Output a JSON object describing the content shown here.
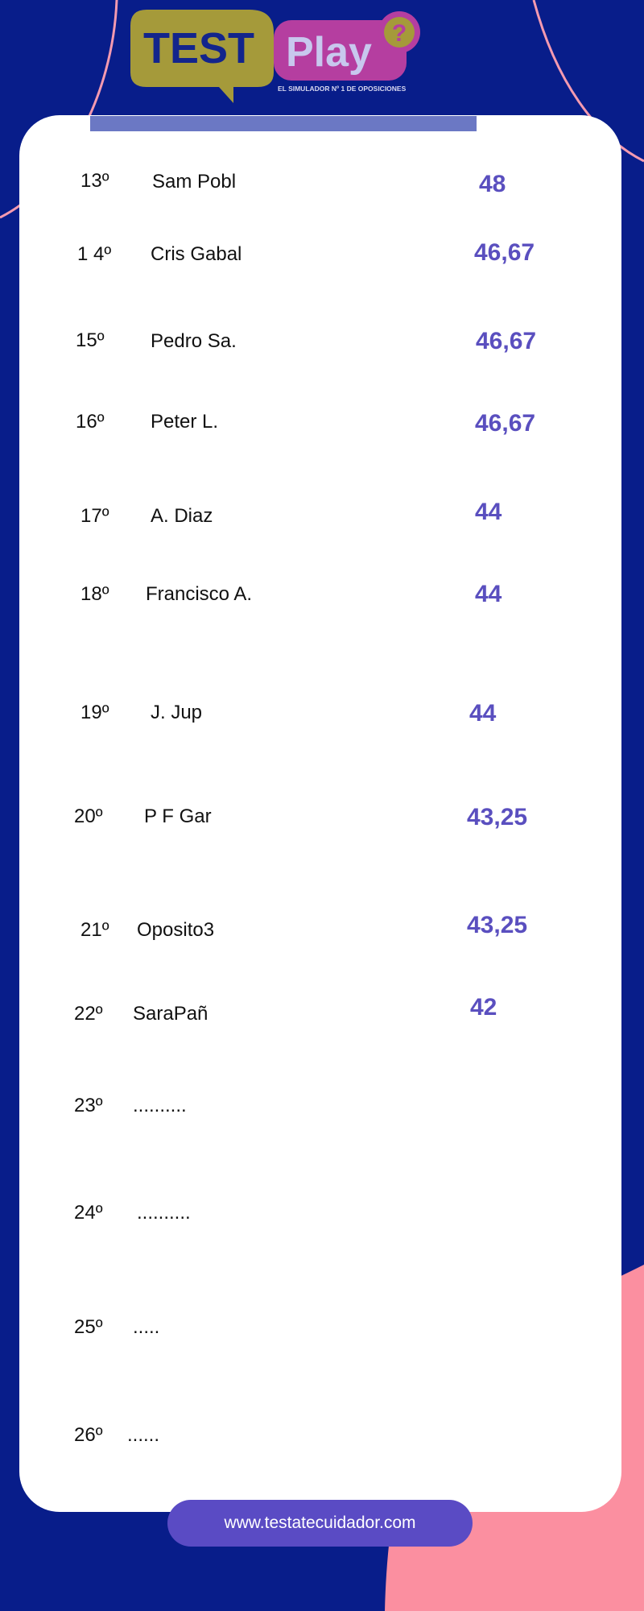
{
  "logo": {
    "text_test": "TEST",
    "text_play": "Play",
    "badge": "?",
    "tagline": "EL SIMULADOR Nº 1 DE OPOSICIONES"
  },
  "colors": {
    "background": "#081d8a",
    "accent": "#5a4fbf",
    "pink": "#fb8fa0",
    "logo_olive": "#a59a3a",
    "logo_magenta": "#b53ea0"
  },
  "ranking": [
    {
      "rank": "13º",
      "name": "Sam Pobl",
      "score": "48"
    },
    {
      "rank": "1 4º",
      "name": "Cris Gabal",
      "score": "46,67"
    },
    {
      "rank": "15º",
      "name": "Pedro Sa.",
      "score": "46,67"
    },
    {
      "rank": "16º",
      "name": "Peter L.",
      "score": "46,67"
    },
    {
      "rank": "17º",
      "name": "A. Diaz",
      "score": "44"
    },
    {
      "rank": "18º",
      "name": "Francisco A.",
      "score": "44"
    },
    {
      "rank": "19º",
      "name": "J. Jup",
      "score": "44"
    },
    {
      "rank": "20º",
      "name": "P F Gar",
      "score": "43,25"
    },
    {
      "rank": "21º",
      "name": "Oposito3",
      "score": "43,25"
    },
    {
      "rank": "22º",
      "name": "SaraPañ",
      "score": "42"
    },
    {
      "rank": "23º",
      "name": "..........",
      "score": ""
    },
    {
      "rank": "24º",
      "name": "..........",
      "score": ""
    },
    {
      "rank": "25º",
      "name": ".....",
      "score": ""
    },
    {
      "rank": "26º",
      "name": "......",
      "score": ""
    }
  ],
  "footer": {
    "url": "www.testatecuidador.com"
  }
}
